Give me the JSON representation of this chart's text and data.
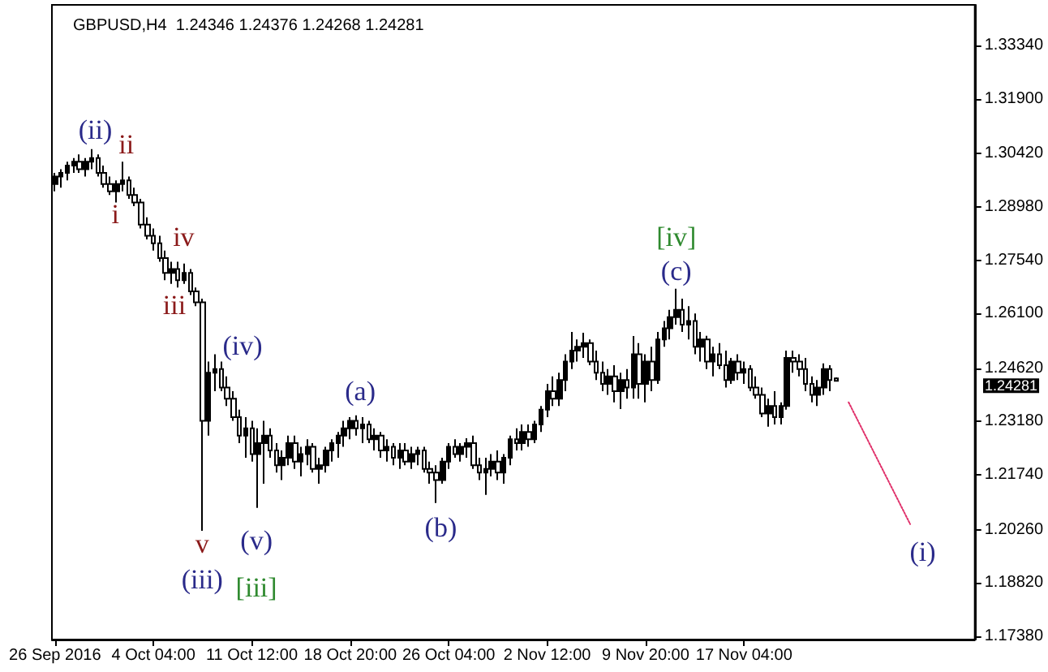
{
  "chart_data": {
    "type": "candlestick",
    "title": "GBPUSD,H4  1.24346 1.24376 1.24268 1.24281",
    "color": "#000000",
    "grid": false,
    "categories": [
      "26 Sep 2016",
      null,
      null,
      null,
      null,
      null,
      null,
      null,
      null,
      null,
      null,
      null,
      null,
      null,
      null,
      null,
      "4 Oct 04:00",
      null,
      null,
      null,
      null,
      null,
      null,
      null,
      null,
      null,
      null,
      null,
      null,
      null,
      null,
      null,
      "11 Oct 12:00",
      null,
      null,
      null,
      null,
      null,
      null,
      null,
      null,
      null,
      null,
      null,
      null,
      null,
      null,
      null,
      "18 Oct 20:00",
      null,
      null,
      null,
      null,
      null,
      null,
      null,
      null,
      null,
      null,
      null,
      null,
      null,
      null,
      null,
      "26 Oct 04:00",
      null,
      null,
      null,
      null,
      null,
      null,
      null,
      null,
      null,
      null,
      null,
      null,
      null,
      null,
      null,
      "2 Nov 12:00",
      null,
      null,
      null,
      null,
      null,
      null,
      null,
      null,
      null,
      null,
      null,
      null,
      null,
      null,
      null,
      "9 Nov 20:00",
      null,
      null,
      null,
      null,
      null,
      null,
      null,
      null,
      null,
      null,
      null,
      null,
      null,
      null,
      null,
      "17 Nov 04:00",
      null,
      null,
      null,
      null,
      null,
      null,
      null,
      null,
      null,
      null,
      null,
      null,
      null,
      null,
      null,
      null,
      null,
      null,
      null,
      null,
      null,
      null,
      null,
      null,
      null,
      null,
      null,
      null,
      null,
      null,
      null,
      null,
      null,
      null,
      null,
      null,
      null
    ],
    "ohlc": [
      [
        1.296,
        1.299,
        1.294,
        1.298
      ],
      [
        1.298,
        1.3,
        1.295,
        1.299
      ],
      [
        1.299,
        1.302,
        1.297,
        1.301
      ],
      [
        1.301,
        1.303,
        1.299,
        1.302
      ],
      [
        1.302,
        1.304,
        1.299,
        1.3
      ],
      [
        1.3,
        1.303,
        1.298,
        1.302
      ],
      [
        1.302,
        1.3054,
        1.3,
        1.303
      ],
      [
        1.303,
        1.304,
        1.298,
        1.299
      ],
      [
        1.299,
        1.301,
        1.295,
        1.296
      ],
      [
        1.296,
        1.298,
        1.293,
        1.294
      ],
      [
        1.294,
        1.297,
        1.291,
        1.296
      ],
      [
        1.296,
        1.302,
        1.294,
        1.297
      ],
      [
        1.297,
        1.298,
        1.292,
        1.293
      ],
      [
        1.293,
        1.295,
        1.29,
        1.291
      ],
      [
        1.291,
        1.292,
        1.284,
        1.285
      ],
      [
        1.285,
        1.287,
        1.281,
        1.282
      ],
      [
        1.282,
        1.284,
        1.278,
        1.28
      ],
      [
        1.28,
        1.282,
        1.275,
        1.276
      ],
      [
        1.276,
        1.278,
        1.27,
        1.272
      ],
      [
        1.272,
        1.275,
        1.269,
        1.273
      ],
      [
        1.273,
        1.275,
        1.268,
        1.27
      ],
      [
        1.27,
        1.2745,
        1.269,
        1.272
      ],
      [
        1.272,
        1.273,
        1.266,
        1.267
      ],
      [
        1.267,
        1.268,
        1.263,
        1.264
      ],
      [
        1.264,
        1.265,
        1.2023,
        1.232
      ],
      [
        1.232,
        1.248,
        1.228,
        1.245
      ],
      [
        1.245,
        1.25,
        1.24,
        1.246
      ],
      [
        1.246,
        1.248,
        1.24,
        1.241
      ],
      [
        1.241,
        1.244,
        1.236,
        1.238
      ],
      [
        1.238,
        1.24,
        1.232,
        1.233
      ],
      [
        1.233,
        1.235,
        1.226,
        1.228
      ],
      [
        1.228,
        1.233,
        1.222,
        1.23
      ],
      [
        1.23,
        1.232,
        1.221,
        1.223
      ],
      [
        1.223,
        1.23,
        1.2085,
        1.226
      ],
      [
        1.226,
        1.232,
        1.215,
        1.228
      ],
      [
        1.228,
        1.23,
        1.222,
        1.224
      ],
      [
        1.224,
        1.226,
        1.218,
        1.22
      ],
      [
        1.22,
        1.224,
        1.216,
        1.222
      ],
      [
        1.222,
        1.228,
        1.22,
        1.226
      ],
      [
        1.226,
        1.228,
        1.219,
        1.221
      ],
      [
        1.221,
        1.225,
        1.217,
        1.223
      ],
      [
        1.223,
        1.227,
        1.22,
        1.225
      ],
      [
        1.225,
        1.226,
        1.218,
        1.219
      ],
      [
        1.219,
        1.222,
        1.215,
        1.22
      ],
      [
        1.22,
        1.225,
        1.218,
        1.224
      ],
      [
        1.224,
        1.227,
        1.221,
        1.226
      ],
      [
        1.226,
        1.229,
        1.222,
        1.228
      ],
      [
        1.228,
        1.232,
        1.225,
        1.23
      ],
      [
        1.23,
        1.233,
        1.227,
        1.232
      ],
      [
        1.232,
        1.2335,
        1.228,
        1.23
      ],
      [
        1.23,
        1.233,
        1.226,
        1.231
      ],
      [
        1.231,
        1.232,
        1.226,
        1.227
      ],
      [
        1.227,
        1.23,
        1.224,
        1.228
      ],
      [
        1.228,
        1.229,
        1.222,
        1.224
      ],
      [
        1.224,
        1.227,
        1.221,
        1.225
      ],
      [
        1.225,
        1.226,
        1.22,
        1.222
      ],
      [
        1.222,
        1.226,
        1.219,
        1.224
      ],
      [
        1.224,
        1.226,
        1.22,
        1.221
      ],
      [
        1.221,
        1.225,
        1.219,
        1.223
      ],
      [
        1.223,
        1.225,
        1.22,
        1.224
      ],
      [
        1.224,
        1.225,
        1.218,
        1.219
      ],
      [
        1.219,
        1.221,
        1.215,
        1.218
      ],
      [
        1.218,
        1.22,
        1.2098,
        1.216
      ],
      [
        1.216,
        1.222,
        1.215,
        1.221
      ],
      [
        1.221,
        1.226,
        1.219,
        1.225
      ],
      [
        1.225,
        1.227,
        1.222,
        1.223
      ],
      [
        1.223,
        1.226,
        1.221,
        1.225
      ],
      [
        1.225,
        1.2273,
        1.222,
        1.226
      ],
      [
        1.226,
        1.228,
        1.219,
        1.22
      ],
      [
        1.22,
        1.222,
        1.216,
        1.218
      ],
      [
        1.218,
        1.222,
        1.212,
        1.219
      ],
      [
        1.219,
        1.223,
        1.217,
        1.221
      ],
      [
        1.221,
        1.224,
        1.216,
        1.218
      ],
      [
        1.218,
        1.223,
        1.215,
        1.222
      ],
      [
        1.222,
        1.228,
        1.22,
        1.227
      ],
      [
        1.227,
        1.23,
        1.224,
        1.226
      ],
      [
        1.226,
        1.231,
        1.224,
        1.229
      ],
      [
        1.229,
        1.231,
        1.225,
        1.227
      ],
      [
        1.227,
        1.232,
        1.226,
        1.231
      ],
      [
        1.231,
        1.236,
        1.229,
        1.235
      ],
      [
        1.235,
        1.242,
        1.233,
        1.24
      ],
      [
        1.24,
        1.244,
        1.236,
        1.238
      ],
      [
        1.238,
        1.245,
        1.236,
        1.243
      ],
      [
        1.243,
        1.25,
        1.24,
        1.248
      ],
      [
        1.248,
        1.256,
        1.246,
        1.251
      ],
      [
        1.251,
        1.254,
        1.248,
        1.252
      ],
      [
        1.252,
        1.2558,
        1.249,
        1.253
      ],
      [
        1.253,
        1.254,
        1.247,
        1.248
      ],
      [
        1.248,
        1.251,
        1.243,
        1.245
      ],
      [
        1.245,
        1.248,
        1.24,
        1.242
      ],
      [
        1.242,
        1.246,
        1.239,
        1.244
      ],
      [
        1.244,
        1.247,
        1.237,
        1.24
      ],
      [
        1.24,
        1.245,
        1.2352,
        1.243
      ],
      [
        1.243,
        1.246,
        1.238,
        1.241
      ],
      [
        1.241,
        1.2549,
        1.238,
        1.25
      ],
      [
        1.25,
        1.253,
        1.238,
        1.242
      ],
      [
        1.242,
        1.25,
        1.237,
        1.248
      ],
      [
        1.248,
        1.252,
        1.24,
        1.243
      ],
      [
        1.243,
        1.256,
        1.242,
        1.254
      ],
      [
        1.254,
        1.259,
        1.252,
        1.257
      ],
      [
        1.257,
        1.262,
        1.254,
        1.26
      ],
      [
        1.26,
        1.2677,
        1.258,
        1.262
      ],
      [
        1.262,
        1.265,
        1.256,
        1.258
      ],
      [
        1.258,
        1.263,
        1.254,
        1.259
      ],
      [
        1.259,
        1.261,
        1.25,
        1.252
      ],
      [
        1.252,
        1.256,
        1.248,
        1.254
      ],
      [
        1.254,
        1.255,
        1.246,
        1.248
      ],
      [
        1.248,
        1.252,
        1.244,
        1.25
      ],
      [
        1.25,
        1.253,
        1.246,
        1.247
      ],
      [
        1.247,
        1.251,
        1.241,
        1.243
      ],
      [
        1.243,
        1.249,
        1.242,
        1.248
      ],
      [
        1.248,
        1.25,
        1.243,
        1.245
      ],
      [
        1.245,
        1.248,
        1.242,
        1.246
      ],
      [
        1.246,
        1.247,
        1.24,
        1.241
      ],
      [
        1.241,
        1.244,
        1.238,
        1.239
      ],
      [
        1.239,
        1.241,
        1.233,
        1.234
      ],
      [
        1.234,
        1.238,
        1.2304,
        1.236
      ],
      [
        1.236,
        1.24,
        1.231,
        1.233
      ],
      [
        1.233,
        1.237,
        1.231,
        1.236
      ],
      [
        1.236,
        1.251,
        1.235,
        1.249
      ],
      [
        1.249,
        1.251,
        1.245,
        1.248
      ],
      [
        1.248,
        1.25,
        1.244,
        1.246
      ],
      [
        1.246,
        1.249,
        1.24,
        1.242
      ],
      [
        1.242,
        1.244,
        1.237,
        1.239
      ],
      [
        1.239,
        1.243,
        1.236,
        1.241
      ],
      [
        1.241,
        1.2475,
        1.239,
        1.246
      ],
      [
        1.246,
        1.247,
        1.24,
        1.243
      ],
      [
        1.24346,
        1.24376,
        1.24268,
        1.24281
      ],
      null,
      null,
      null,
      null,
      null,
      null,
      null,
      null,
      null,
      null,
      null,
      null,
      null,
      null,
      null,
      null,
      null,
      null,
      null,
      null,
      null,
      null
    ],
    "series": [
      {
        "type": "line",
        "color": "#e0306a",
        "line_style": "dotted",
        "marker": "none",
        "values": [
          null,
          null,
          null,
          null,
          null,
          null,
          null,
          null,
          null,
          null,
          null,
          null,
          null,
          null,
          null,
          null,
          null,
          null,
          null,
          null,
          null,
          null,
          null,
          null,
          null,
          null,
          null,
          null,
          null,
          null,
          null,
          null,
          null,
          null,
          null,
          null,
          null,
          null,
          null,
          null,
          null,
          null,
          null,
          null,
          null,
          null,
          null,
          null,
          null,
          null,
          null,
          null,
          null,
          null,
          null,
          null,
          null,
          null,
          null,
          null,
          null,
          null,
          null,
          null,
          null,
          null,
          null,
          null,
          null,
          null,
          null,
          null,
          null,
          null,
          null,
          null,
          null,
          null,
          null,
          null,
          null,
          null,
          null,
          null,
          null,
          null,
          null,
          null,
          null,
          null,
          null,
          null,
          null,
          null,
          null,
          null,
          null,
          null,
          null,
          null,
          null,
          null,
          null,
          null,
          null,
          null,
          null,
          null,
          null,
          null,
          null,
          null,
          null,
          null,
          null,
          null,
          null,
          null,
          null,
          null,
          null,
          null,
          null,
          null,
          null,
          null,
          null,
          null,
          null,
          1.237,
          null,
          null,
          null,
          null,
          null,
          null,
          null,
          null,
          null,
          1.2041,
          null,
          null,
          null,
          null,
          null,
          null,
          null,
          null,
          null,
          null
        ]
      }
    ],
    "ylim": [
      1.1729,
      1.3444
    ],
    "yticks": [
      {
        "value": 1.1738,
        "label": "1.17380"
      },
      {
        "value": 1.1882,
        "label": "1.18820"
      },
      {
        "value": 1.2026,
        "label": "1.20260"
      },
      {
        "value": 1.2174,
        "label": "1.21740"
      },
      {
        "value": 1.2318,
        "label": "1.23180"
      },
      {
        "value": 1.2462,
        "label": "1.24620"
      },
      {
        "value": 1.261,
        "label": "1.26100"
      },
      {
        "value": 1.2754,
        "label": "1.27540"
      },
      {
        "value": 1.2898,
        "label": "1.28980"
      },
      {
        "value": 1.3042,
        "label": "1.30420"
      },
      {
        "value": 1.319,
        "label": "1.31900"
      },
      {
        "value": 1.3334,
        "label": "1.33340"
      }
    ],
    "annotations": [
      "(ii)",
      "ii",
      "i",
      "iv",
      "iii",
      "(iv)",
      "(a)",
      "v",
      "(iii)",
      "(v)",
      "[iii]",
      "(b)",
      "[iv]",
      "(c)",
      "(i)",
      "1.24281"
    ]
  }
}
